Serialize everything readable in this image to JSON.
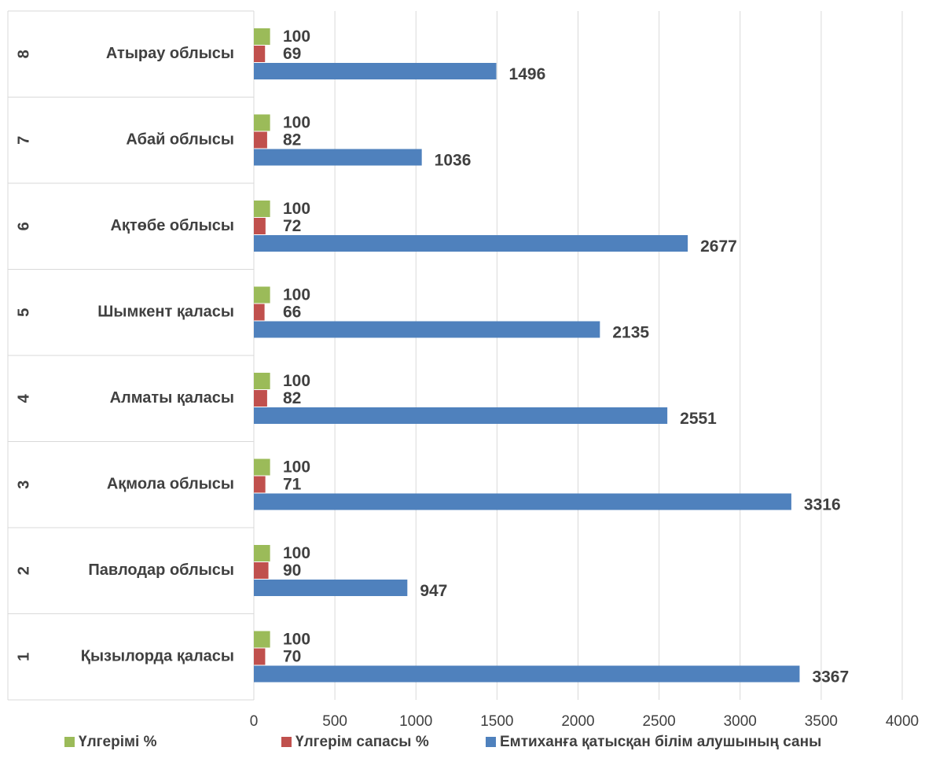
{
  "chart_data": {
    "type": "hbar",
    "category_numbers": [
      "1",
      "2",
      "3",
      "4",
      "5",
      "6",
      "7",
      "8"
    ],
    "categories": [
      "Қызылорда қаласы",
      "Павлодар облысы",
      "Ақмола облысы",
      "Алматы қаласы",
      "Шымкент қаласы",
      "Ақтөбе облысы",
      "Абай облысы",
      "Атырау облысы"
    ],
    "series": [
      {
        "name": "Үлгерімі %",
        "color": "#9bbb59",
        "values": [
          100,
          100,
          100,
          100,
          100,
          100,
          100,
          100
        ]
      },
      {
        "name": "Үлгерім сапасы %",
        "color": "#c0504d",
        "values": [
          70,
          90,
          71,
          82,
          66,
          72,
          82,
          69
        ]
      },
      {
        "name": "Емтиханға қатысқан білім алушының саны",
        "color": "#4f81bd",
        "values": [
          3367,
          947,
          3316,
          2551,
          2135,
          2677,
          1036,
          1496
        ]
      }
    ],
    "xlim": [
      0,
      4000
    ],
    "xticks": [
      0,
      500,
      1000,
      1500,
      2000,
      2500,
      3000,
      3500,
      4000
    ],
    "grid": true,
    "legend": "bottom"
  }
}
